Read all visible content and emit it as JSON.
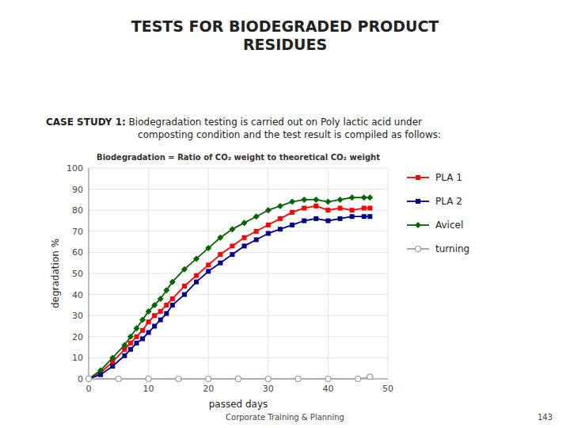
{
  "chart_data": {
    "type": "line",
    "title": "TESTS FOR BIODEGRADED PRODUCT\nRESIDUES",
    "subtitle": "Biodegradation = Ratio of CO₂ weight to theoretical CO₂ weight",
    "x_label": "passed days",
    "y_label": "degradation %",
    "annotations": [
      "CASE STUDY 1:",
      " Biodegradation testing is carried out on Poly lactic acid under\n    composting condition and the test result is compiled as follows:",
      "Corporate Training & Planning",
      "143"
    ],
    "xlim": [
      0,
      50
    ],
    "ylim": [
      0,
      100
    ],
    "xticks": [
      0,
      10,
      20,
      30,
      40,
      50
    ],
    "yticks": [
      0,
      10,
      20,
      30,
      40,
      50,
      60,
      70,
      80,
      90,
      100
    ],
    "grid": true,
    "legend": "right",
    "series": [
      {
        "name": "PLA 1",
        "color": "#FF0000",
        "marker": "square",
        "x": [
          0,
          2,
          4,
          6,
          7,
          8,
          9,
          10,
          11,
          12,
          13,
          14,
          16,
          18,
          20,
          22,
          24,
          26,
          28,
          30,
          32,
          34,
          36,
          38,
          40,
          42,
          44,
          46,
          47
        ],
        "values": [
          0,
          3,
          8,
          14,
          17,
          20,
          23,
          27,
          30,
          32,
          35,
          38,
          44,
          49,
          54,
          59,
          63,
          67,
          70,
          73,
          76,
          79,
          81,
          82,
          80,
          81,
          80,
          81,
          81
        ]
      },
      {
        "name": "PLA 2",
        "color": "#00008B",
        "marker": "square",
        "x": [
          0,
          2,
          4,
          6,
          7,
          8,
          9,
          10,
          11,
          12,
          13,
          14,
          16,
          18,
          20,
          22,
          24,
          26,
          28,
          30,
          32,
          34,
          36,
          38,
          40,
          42,
          44,
          46,
          47
        ],
        "values": [
          0,
          2,
          6,
          11,
          14,
          17,
          19,
          22,
          25,
          28,
          31,
          35,
          40,
          46,
          51,
          55,
          59,
          63,
          66,
          69,
          71,
          73,
          75,
          76,
          75,
          76,
          77,
          77,
          77
        ]
      },
      {
        "name": "Avicel",
        "color": "#006400",
        "marker": "diamond",
        "x": [
          0,
          2,
          4,
          6,
          7,
          8,
          9,
          10,
          11,
          12,
          13,
          14,
          16,
          18,
          20,
          22,
          24,
          26,
          28,
          30,
          32,
          34,
          36,
          38,
          40,
          42,
          44,
          46,
          47
        ],
        "values": [
          0,
          4,
          10,
          16,
          20,
          24,
          28,
          32,
          35,
          38,
          42,
          46,
          52,
          57,
          62,
          67,
          71,
          74,
          77,
          80,
          82,
          84,
          85,
          85,
          84,
          85,
          86,
          86,
          86
        ]
      },
      {
        "name": "turning",
        "color": "#9999BB",
        "marker": "open-circle",
        "x": [
          0,
          5,
          10,
          15,
          20,
          25,
          30,
          35,
          40,
          45,
          47
        ],
        "values": [
          0,
          0,
          0,
          0,
          0,
          0,
          0,
          0,
          0,
          0,
          1
        ]
      }
    ]
  }
}
